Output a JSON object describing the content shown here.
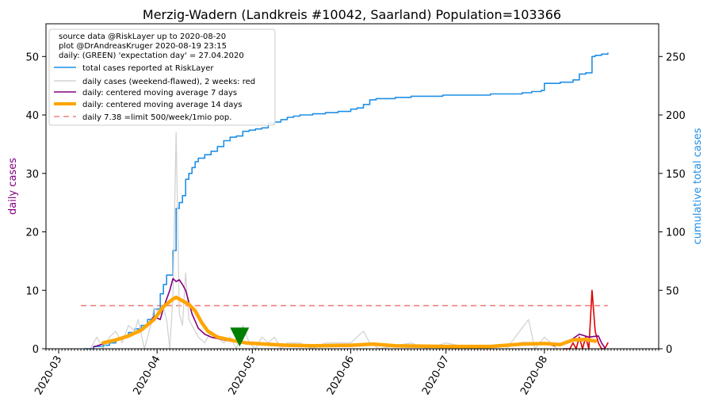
{
  "chart_data": {
    "type": "line",
    "title": "Merzig-Wadern (Landkreis #10042, Saarland) Population=103366",
    "ylabel_left": "daily cases",
    "ylabel_right": "cumulative total cases",
    "x_start_date": "2020-02-26",
    "x_end_date": "2020-09-06",
    "x_ticks": [
      "2020-03",
      "2020-04",
      "2020-05",
      "2020-06",
      "2020-07",
      "2020-08"
    ],
    "y_left_lim": [
      0,
      55.6
    ],
    "y_left_ticks": [
      0,
      10,
      20,
      30,
      40,
      50
    ],
    "y_right_lim": [
      0,
      278
    ],
    "y_right_ticks": [
      0,
      50,
      100,
      150,
      200,
      250
    ],
    "legend": {
      "position": "top-left",
      "header": [
        "source data @RiskLayer up to 2020-08-20",
        "plot @DrAndreasKruger 2020-08-19 23:15",
        "daily: (GREEN) 'expectation day' = 27.04.2020"
      ],
      "entries": [
        {
          "label": "total cases reported at RiskLayer",
          "color": "#1f8fe6"
        },
        {
          "label": "daily cases (weekend-flawed), 2 weeks: red",
          "color": "#d3d3d3"
        },
        {
          "label": "daily: centered moving average 7 days",
          "color": "#800080"
        },
        {
          "label": "daily: centered moving average 14 days",
          "color": "#ffa500"
        },
        {
          "label": "daily 7.38 =limit 500/week/1mio pop.",
          "color": "#f08080"
        }
      ]
    },
    "limit_line": {
      "value": 7.38,
      "from": "2020-03-08",
      "to": "2020-08-21"
    },
    "expectation_day": {
      "date": "2020-04-27",
      "value": 2,
      "color": "#008000"
    },
    "series": [
      {
        "name": "total cases reported at RiskLayer",
        "axis": "right",
        "color": "#1f8fe6",
        "points": [
          [
            "2020-03-09",
            0
          ],
          [
            "2020-03-12",
            2
          ],
          [
            "2020-03-15",
            3
          ],
          [
            "2020-03-17",
            5
          ],
          [
            "2020-03-19",
            8
          ],
          [
            "2020-03-21",
            10
          ],
          [
            "2020-03-23",
            14
          ],
          [
            "2020-03-25",
            17
          ],
          [
            "2020-03-27",
            20
          ],
          [
            "2020-03-29",
            25
          ],
          [
            "2020-03-31",
            34
          ],
          [
            "2020-04-02",
            47
          ],
          [
            "2020-04-03",
            55
          ],
          [
            "2020-04-04",
            63
          ],
          [
            "2020-04-06",
            84
          ],
          [
            "2020-04-07",
            120
          ],
          [
            "2020-04-08",
            125
          ],
          [
            "2020-04-09",
            131
          ],
          [
            "2020-04-10",
            145
          ],
          [
            "2020-04-11",
            150
          ],
          [
            "2020-04-12",
            155
          ],
          [
            "2020-04-13",
            160
          ],
          [
            "2020-04-14",
            163
          ],
          [
            "2020-04-16",
            166
          ],
          [
            "2020-04-18",
            169
          ],
          [
            "2020-04-20",
            173
          ],
          [
            "2020-04-22",
            178
          ],
          [
            "2020-04-24",
            181
          ],
          [
            "2020-04-26",
            182
          ],
          [
            "2020-04-28",
            186
          ],
          [
            "2020-04-30",
            187
          ],
          [
            "2020-05-02",
            188
          ],
          [
            "2020-05-04",
            189
          ],
          [
            "2020-05-06",
            193
          ],
          [
            "2020-05-08",
            194
          ],
          [
            "2020-05-10",
            196
          ],
          [
            "2020-05-12",
            198
          ],
          [
            "2020-05-14",
            199
          ],
          [
            "2020-05-16",
            200
          ],
          [
            "2020-05-20",
            201
          ],
          [
            "2020-05-24",
            202
          ],
          [
            "2020-05-28",
            203
          ],
          [
            "2020-06-01",
            205
          ],
          [
            "2020-06-03",
            206
          ],
          [
            "2020-06-05",
            209
          ],
          [
            "2020-06-07",
            213
          ],
          [
            "2020-06-09",
            214
          ],
          [
            "2020-06-15",
            215
          ],
          [
            "2020-06-20",
            216
          ],
          [
            "2020-06-30",
            217
          ],
          [
            "2020-07-15",
            218
          ],
          [
            "2020-07-25",
            219
          ],
          [
            "2020-07-28",
            220
          ],
          [
            "2020-07-31",
            221
          ],
          [
            "2020-08-01",
            227
          ],
          [
            "2020-08-06",
            228
          ],
          [
            "2020-08-10",
            230
          ],
          [
            "2020-08-12",
            235
          ],
          [
            "2020-08-14",
            236
          ],
          [
            "2020-08-16",
            250
          ],
          [
            "2020-08-17",
            251
          ],
          [
            "2020-08-19",
            252
          ],
          [
            "2020-08-21",
            253
          ]
        ]
      },
      {
        "name": "daily cases (weekend-flawed), 2 weeks: red",
        "axis": "left",
        "color": "#d3d3d3",
        "points": [
          [
            "2020-03-09",
            0
          ],
          [
            "2020-03-11",
            0
          ],
          [
            "2020-03-13",
            2
          ],
          [
            "2020-03-14",
            1
          ],
          [
            "2020-03-15",
            0
          ],
          [
            "2020-03-17",
            2
          ],
          [
            "2020-03-19",
            3
          ],
          [
            "2020-03-21",
            1
          ],
          [
            "2020-03-23",
            4
          ],
          [
            "2020-03-25",
            3
          ],
          [
            "2020-03-26",
            5
          ],
          [
            "2020-03-28",
            0
          ],
          [
            "2020-03-30",
            4
          ],
          [
            "2020-03-31",
            7
          ],
          [
            "2020-04-02",
            6
          ],
          [
            "2020-04-03",
            7
          ],
          [
            "2020-04-04",
            5
          ],
          [
            "2020-04-05",
            0
          ],
          [
            "2020-04-06",
            9
          ],
          [
            "2020-04-07",
            37
          ],
          [
            "2020-04-08",
            6
          ],
          [
            "2020-04-09",
            4
          ],
          [
            "2020-04-10",
            13
          ],
          [
            "2020-04-11",
            5
          ],
          [
            "2020-04-12",
            4
          ],
          [
            "2020-04-13",
            3
          ],
          [
            "2020-04-14",
            2
          ],
          [
            "2020-04-16",
            1
          ],
          [
            "2020-04-18",
            3
          ],
          [
            "2020-04-20",
            2
          ],
          [
            "2020-04-22",
            1
          ],
          [
            "2020-04-24",
            2
          ],
          [
            "2020-04-26",
            0
          ],
          [
            "2020-04-28",
            4
          ],
          [
            "2020-04-30",
            1
          ],
          [
            "2020-05-02",
            0
          ],
          [
            "2020-05-04",
            2
          ],
          [
            "2020-05-06",
            1
          ],
          [
            "2020-05-08",
            2
          ],
          [
            "2020-05-10",
            0
          ],
          [
            "2020-05-12",
            1
          ],
          [
            "2020-05-16",
            1
          ],
          [
            "2020-05-20",
            0
          ],
          [
            "2020-05-24",
            1
          ],
          [
            "2020-06-01",
            1
          ],
          [
            "2020-06-05",
            3
          ],
          [
            "2020-06-07",
            1
          ],
          [
            "2020-06-10",
            0
          ],
          [
            "2020-06-20",
            1
          ],
          [
            "2020-06-25",
            0
          ],
          [
            "2020-07-01",
            1
          ],
          [
            "2020-07-10",
            0
          ],
          [
            "2020-07-20",
            0
          ],
          [
            "2020-07-27",
            5
          ],
          [
            "2020-07-29",
            0
          ],
          [
            "2020-08-01",
            2
          ],
          [
            "2020-08-05",
            0
          ]
        ]
      },
      {
        "name": "daily cases, last 2 weeks",
        "axis": "left",
        "color": "#e00000",
        "points": [
          [
            "2020-08-07",
            0
          ],
          [
            "2020-08-09",
            0
          ],
          [
            "2020-08-10",
            1
          ],
          [
            "2020-08-11",
            0
          ],
          [
            "2020-08-12",
            2
          ],
          [
            "2020-08-13",
            0
          ],
          [
            "2020-08-14",
            2
          ],
          [
            "2020-08-15",
            0
          ],
          [
            "2020-08-16",
            10
          ],
          [
            "2020-08-17",
            3
          ],
          [
            "2020-08-18",
            1
          ],
          [
            "2020-08-19",
            0
          ],
          [
            "2020-08-20",
            0
          ],
          [
            "2020-08-21",
            1
          ]
        ]
      },
      {
        "name": "daily: centered moving average 7 days",
        "axis": "left",
        "color": "#800080",
        "points": [
          [
            "2020-03-12",
            0.3
          ],
          [
            "2020-03-16",
            1.0
          ],
          [
            "2020-03-20",
            1.8
          ],
          [
            "2020-03-24",
            2.5
          ],
          [
            "2020-03-28",
            3.5
          ],
          [
            "2020-03-31",
            5.5
          ],
          [
            "2020-04-02",
            5.0
          ],
          [
            "2020-04-03",
            7.0
          ],
          [
            "2020-04-05",
            10.0
          ],
          [
            "2020-04-06",
            12.0
          ],
          [
            "2020-04-07",
            11.5
          ],
          [
            "2020-04-08",
            11.8
          ],
          [
            "2020-04-09",
            11.0
          ],
          [
            "2020-04-10",
            10.0
          ],
          [
            "2020-04-11",
            8.0
          ],
          [
            "2020-04-12",
            6.0
          ],
          [
            "2020-04-14",
            3.5
          ],
          [
            "2020-04-16",
            2.5
          ],
          [
            "2020-04-18",
            2.0
          ],
          [
            "2020-04-22",
            1.5
          ],
          [
            "2020-04-26",
            1.2
          ],
          [
            "2020-04-30",
            1.0
          ],
          [
            "2020-05-05",
            0.8
          ],
          [
            "2020-05-12",
            0.7
          ],
          [
            "2020-05-20",
            0.6
          ],
          [
            "2020-06-01",
            0.6
          ],
          [
            "2020-06-08",
            0.8
          ],
          [
            "2020-06-15",
            0.5
          ],
          [
            "2020-07-01",
            0.4
          ],
          [
            "2020-07-15",
            0.3
          ],
          [
            "2020-07-25",
            1.0
          ],
          [
            "2020-08-01",
            1.0
          ],
          [
            "2020-08-04",
            0.5
          ],
          [
            "2020-08-08",
            1.0
          ],
          [
            "2020-08-12",
            2.5
          ],
          [
            "2020-08-15",
            2.0
          ],
          [
            "2020-08-18",
            2.2
          ],
          [
            "2020-08-19",
            1.0
          ],
          [
            "2020-08-20",
            0.2
          ]
        ]
      },
      {
        "name": "daily: centered moving average 14 days",
        "axis": "left",
        "color": "#ffa500",
        "points": [
          [
            "2020-03-15",
            1.0
          ],
          [
            "2020-03-19",
            1.5
          ],
          [
            "2020-03-23",
            2.2
          ],
          [
            "2020-03-27",
            3.2
          ],
          [
            "2020-03-31",
            5.0
          ],
          [
            "2020-04-03",
            7.2
          ],
          [
            "2020-04-06",
            8.5
          ],
          [
            "2020-04-07",
            8.8
          ],
          [
            "2020-04-09",
            8.2
          ],
          [
            "2020-04-11",
            7.6
          ],
          [
            "2020-04-13",
            6.5
          ],
          [
            "2020-04-15",
            4.5
          ],
          [
            "2020-04-17",
            3.0
          ],
          [
            "2020-04-20",
            2.0
          ],
          [
            "2020-04-24",
            1.5
          ],
          [
            "2020-04-29",
            1.0
          ],
          [
            "2020-05-05",
            0.8
          ],
          [
            "2020-05-12",
            0.6
          ],
          [
            "2020-05-20",
            0.5
          ],
          [
            "2020-06-01",
            0.6
          ],
          [
            "2020-06-08",
            0.8
          ],
          [
            "2020-06-15",
            0.5
          ],
          [
            "2020-07-01",
            0.4
          ],
          [
            "2020-07-15",
            0.4
          ],
          [
            "2020-07-25",
            0.8
          ],
          [
            "2020-08-01",
            0.9
          ],
          [
            "2020-08-06",
            0.7
          ],
          [
            "2020-08-10",
            1.5
          ],
          [
            "2020-08-14",
            1.6
          ],
          [
            "2020-08-17",
            1.3
          ]
        ]
      }
    ]
  }
}
